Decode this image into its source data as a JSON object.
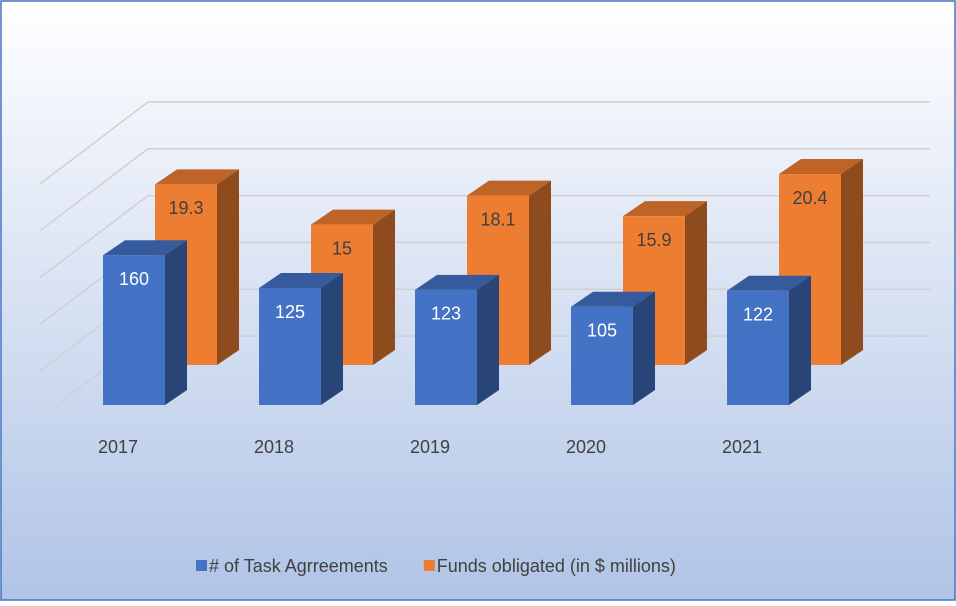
{
  "chart_data": {
    "type": "bar3d",
    "categories": [
      "2017",
      "2018",
      "2019",
      "2020",
      "2021"
    ],
    "series": [
      {
        "name": "# of Task Agrreements",
        "color": "#4472c4",
        "values": [
          160,
          125,
          123,
          105,
          122
        ]
      },
      {
        "name": "Funds obligated (in $ millions)",
        "color": "#ed7d31",
        "axis": "y2",
        "values": [
          19.3,
          15,
          18.1,
          15.9,
          20.4
        ]
      }
    ],
    "ylim": [
      0,
      250
    ],
    "yticks": [
      0,
      50,
      100,
      150,
      200,
      250
    ],
    "y2lim": [
      0,
      25
    ],
    "grid": true,
    "legend": "bottom"
  }
}
